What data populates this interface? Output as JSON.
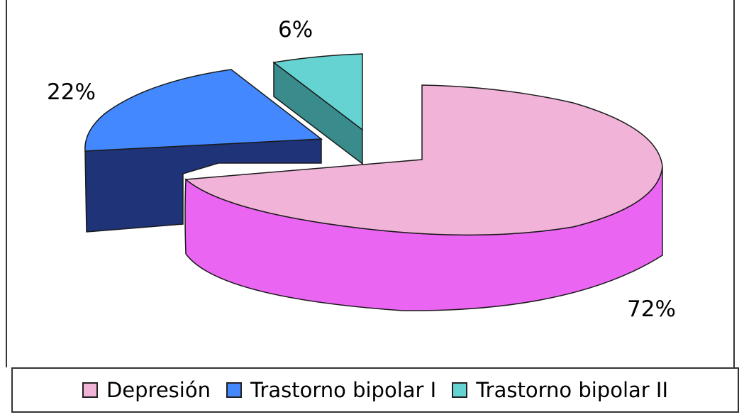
{
  "chart_data": {
    "type": "pie",
    "title": "",
    "three_d": true,
    "exploded": true,
    "data_labels_format": "percent",
    "legend_position": "bottom",
    "series": [
      {
        "label": "Depresión",
        "value": 72,
        "value_label": "72%",
        "color": "#f2b3d9",
        "side_color": "#ea66f2"
      },
      {
        "label": "Trastorno bipolar I",
        "value": 22,
        "value_label": "22%",
        "color": "#4488ff",
        "side_color": "#1f3378"
      },
      {
        "label": "Trastorno bipolar II",
        "value": 6,
        "value_label": "6%",
        "color": "#66d3d3",
        "side_color": "#3a8c8c"
      }
    ]
  }
}
